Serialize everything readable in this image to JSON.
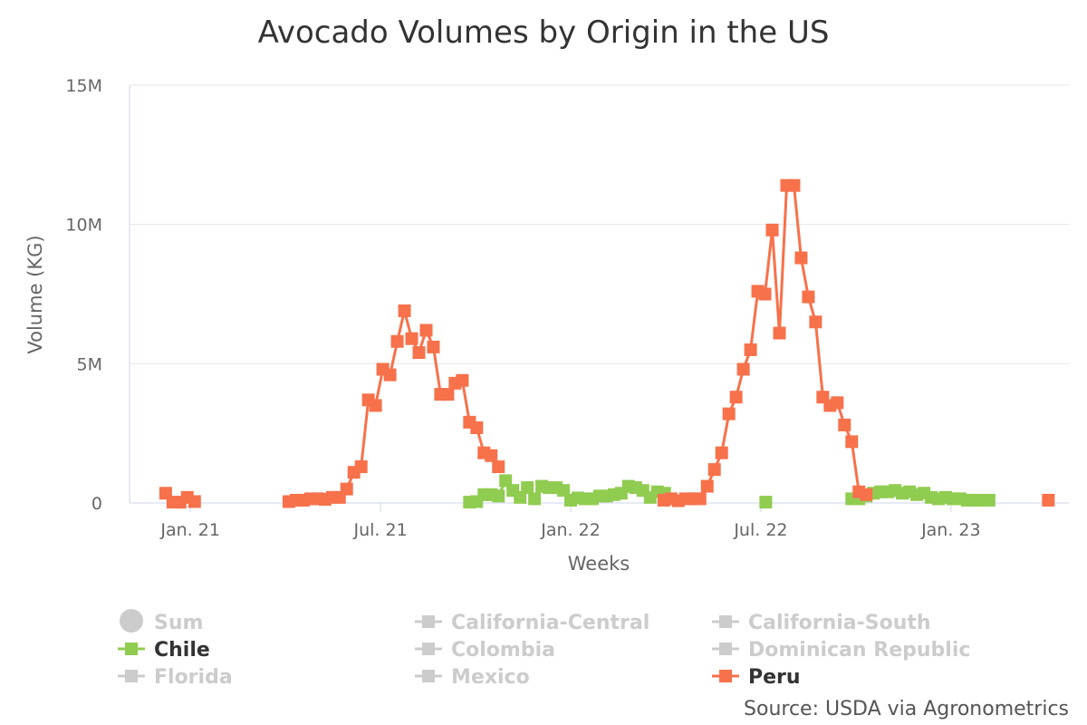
{
  "chart_data": {
    "type": "line",
    "title": "Avocado Volumes by Origin in the US",
    "xlabel": "Weeks",
    "ylabel": "Volume (KG)",
    "y_ticks": [
      {
        "value": 0,
        "label": "0"
      },
      {
        "value": 5000000,
        "label": "5M"
      },
      {
        "value": 10000000,
        "label": "10M"
      },
      {
        "value": 15000000,
        "label": "15M"
      }
    ],
    "ylim": [
      0,
      15000000
    ],
    "x_ticks": [
      {
        "value": 2021.0,
        "label": "Jan. 21"
      },
      {
        "value": 2021.5,
        "label": "Jul. 21"
      },
      {
        "value": 2022.0,
        "label": "Jan. 22"
      },
      {
        "value": 2022.5,
        "label": "Jul. 22"
      },
      {
        "value": 2023.0,
        "label": "Jan. 23"
      }
    ],
    "xlim": [
      2020.84,
      2023.31
    ],
    "grid": "horizontal",
    "legend_position": "bottom",
    "source": "Source: USDA via Agronometrics",
    "legend": [
      {
        "name": "Sum",
        "active": false,
        "marker": "circle"
      },
      {
        "name": "California-Central",
        "active": false,
        "marker": "square"
      },
      {
        "name": "California-South",
        "active": false,
        "marker": "square"
      },
      {
        "name": "Chile",
        "active": true,
        "marker": "square"
      },
      {
        "name": "Colombia",
        "active": false,
        "marker": "square"
      },
      {
        "name": "Dominican Republic",
        "active": false,
        "marker": "square"
      },
      {
        "name": "Florida",
        "active": false,
        "marker": "square"
      },
      {
        "name": "Mexico",
        "active": false,
        "marker": "square"
      },
      {
        "name": "Peru",
        "active": true,
        "marker": "square"
      }
    ],
    "series": [
      {
        "name": "Peru",
        "color": "#f7714a",
        "segments": [
          [
            [
              2020.935,
              350000
            ],
            [
              2020.954,
              30000
            ],
            [
              2020.973,
              30000
            ],
            [
              2020.992,
              200000
            ],
            [
              2021.011,
              50000
            ]
          ],
          [
            [
              2021.259,
              50000
            ],
            [
              2021.278,
              100000
            ],
            [
              2021.297,
              100000
            ],
            [
              2021.316,
              150000
            ],
            [
              2021.335,
              150000
            ],
            [
              2021.354,
              130000
            ],
            [
              2021.373,
              200000
            ],
            [
              2021.392,
              200000
            ],
            [
              2021.411,
              500000
            ],
            [
              2021.43,
              1100000
            ],
            [
              2021.449,
              1300000
            ],
            [
              2021.468,
              3700000
            ],
            [
              2021.487,
              3500000
            ],
            [
              2021.506,
              4800000
            ],
            [
              2021.525,
              4600000
            ],
            [
              2021.544,
              5800000
            ],
            [
              2021.563,
              6900000
            ],
            [
              2021.582,
              5900000
            ],
            [
              2021.601,
              5400000
            ],
            [
              2021.62,
              6200000
            ],
            [
              2021.639,
              5600000
            ],
            [
              2021.658,
              3900000
            ],
            [
              2021.677,
              3900000
            ],
            [
              2021.696,
              4300000
            ],
            [
              2021.715,
              4400000
            ],
            [
              2021.734,
              2900000
            ],
            [
              2021.753,
              2700000
            ],
            [
              2021.772,
              1800000
            ],
            [
              2021.791,
              1700000
            ],
            [
              2021.81,
              1300000
            ]
          ],
          [
            [
              2022.245,
              100000
            ],
            [
              2022.264,
              150000
            ],
            [
              2022.283,
              80000
            ],
            [
              2022.302,
              150000
            ],
            [
              2022.321,
              150000
            ],
            [
              2022.34,
              150000
            ],
            [
              2022.359,
              600000
            ],
            [
              2022.378,
              1200000
            ],
            [
              2022.397,
              1800000
            ],
            [
              2022.416,
              3200000
            ],
            [
              2022.435,
              3800000
            ],
            [
              2022.454,
              4800000
            ],
            [
              2022.473,
              5500000
            ],
            [
              2022.492,
              7600000
            ],
            [
              2022.511,
              7500000
            ],
            [
              2022.53,
              9800000
            ],
            [
              2022.549,
              6100000
            ],
            [
              2022.568,
              11400000
            ],
            [
              2022.587,
              11400000
            ],
            [
              2022.606,
              8800000
            ],
            [
              2022.625,
              7400000
            ],
            [
              2022.644,
              6500000
            ],
            [
              2022.663,
              3800000
            ],
            [
              2022.682,
              3500000
            ],
            [
              2022.701,
              3600000
            ],
            [
              2022.72,
              2800000
            ],
            [
              2022.739,
              2200000
            ],
            [
              2022.758,
              400000
            ],
            [
              2022.777,
              300000
            ]
          ],
          [
            [
              2023.256,
              100000
            ]
          ]
        ]
      },
      {
        "name": "Chile",
        "color": "#90cc50",
        "segments": [
          [
            [
              2021.734,
              30000
            ],
            [
              2021.753,
              50000
            ],
            [
              2021.772,
              300000
            ],
            [
              2021.791,
              300000
            ],
            [
              2021.81,
              250000
            ],
            [
              2021.829,
              800000
            ],
            [
              2021.848,
              450000
            ],
            [
              2021.867,
              200000
            ],
            [
              2021.886,
              550000
            ],
            [
              2021.905,
              150000
            ],
            [
              2021.924,
              600000
            ],
            [
              2021.943,
              550000
            ],
            [
              2021.962,
              550000
            ],
            [
              2021.981,
              450000
            ],
            [
              2022.0,
              100000
            ],
            [
              2022.019,
              180000
            ],
            [
              2022.038,
              150000
            ],
            [
              2022.057,
              150000
            ],
            [
              2022.076,
              250000
            ],
            [
              2022.095,
              250000
            ],
            [
              2022.114,
              300000
            ],
            [
              2022.133,
              350000
            ],
            [
              2022.152,
              600000
            ],
            [
              2022.171,
              550000
            ],
            [
              2022.19,
              450000
            ],
            [
              2022.209,
              200000
            ],
            [
              2022.228,
              400000
            ],
            [
              2022.247,
              350000
            ]
          ],
          [
            [
              2022.513,
              30000
            ]
          ],
          [
            [
              2022.739,
              150000
            ],
            [
              2022.758,
              150000
            ],
            [
              2022.777,
              250000
            ],
            [
              2022.796,
              350000
            ],
            [
              2022.815,
              400000
            ],
            [
              2022.834,
              400000
            ],
            [
              2022.853,
              450000
            ],
            [
              2022.872,
              350000
            ],
            [
              2022.891,
              400000
            ],
            [
              2022.91,
              300000
            ],
            [
              2022.929,
              350000
            ],
            [
              2022.948,
              200000
            ],
            [
              2022.967,
              150000
            ],
            [
              2022.986,
              200000
            ],
            [
              2023.005,
              150000
            ],
            [
              2023.024,
              150000
            ],
            [
              2023.043,
              100000
            ],
            [
              2023.062,
              100000
            ],
            [
              2023.081,
              100000
            ],
            [
              2023.1,
              100000
            ]
          ]
        ]
      }
    ]
  }
}
